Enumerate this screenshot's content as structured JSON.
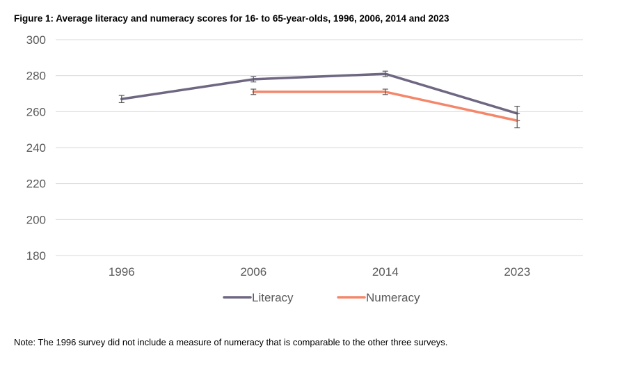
{
  "title": "Figure 1: Average literacy and numeracy scores for 16- to 65-year-olds, 1996, 2006, 2014 and 2023",
  "note": "Note: The 1996 survey did not include a measure of numeracy that is comparable to the other three surveys.",
  "chart_data": {
    "type": "line",
    "categories": [
      "1996",
      "2006",
      "2014",
      "2023"
    ],
    "ylim": [
      180,
      300
    ],
    "yticks": [
      180,
      200,
      220,
      240,
      260,
      280,
      300
    ],
    "grid": true,
    "legend_position": "bottom",
    "series": [
      {
        "name": "Literacy",
        "color": "#6f6782",
        "values": [
          267,
          278,
          281,
          259
        ],
        "error_low": [
          265,
          276.5,
          279.5,
          255
        ],
        "error_high": [
          269,
          279.5,
          282.5,
          263
        ]
      },
      {
        "name": "Numeracy",
        "color": "#f4866a",
        "values": [
          null,
          271,
          271,
          255
        ],
        "error_low": [
          null,
          269.5,
          269.5,
          251
        ],
        "error_high": [
          null,
          272.5,
          272.5,
          259
        ]
      }
    ]
  }
}
